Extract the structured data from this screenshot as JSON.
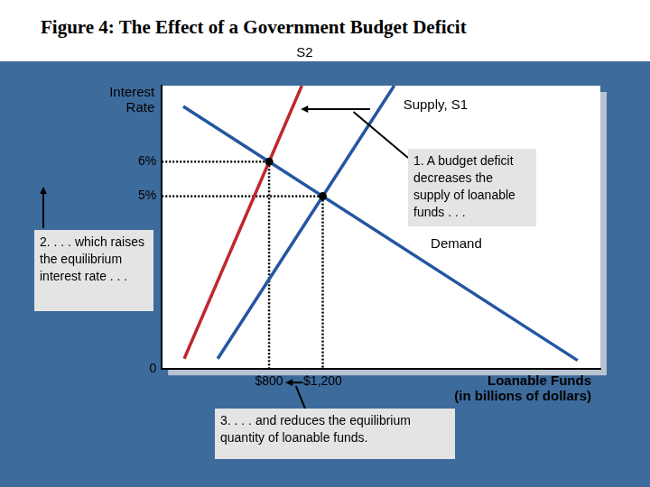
{
  "chart_data": {
    "type": "line",
    "title": "Figure 4: The Effect of a Government Budget Deficit",
    "x_label": "Loanable Funds\n(in billions of dollars)",
    "y_label": "Interest\nRate",
    "xlim": [
      0,
      3270
    ],
    "ylim": [
      0,
      8.2
    ],
    "xticks": [
      {
        "value": 800,
        "label": "$800"
      },
      {
        "value": 1200,
        "label": "$1,200"
      }
    ],
    "yticks": [
      {
        "value": 0,
        "label": "0"
      },
      {
        "value": 5,
        "label": "5%"
      },
      {
        "value": 6,
        "label": "6%"
      }
    ],
    "grid": false,
    "series": [
      {
        "name": "S2",
        "color": "#c0282d",
        "x": [
          167,
          1044
        ],
        "values": [
          0.3,
          8.2
        ]
      },
      {
        "name": "Supply, S1",
        "color": "#2356a0",
        "x": [
          417,
          1733
        ],
        "values": [
          0.3,
          8.2
        ]
      },
      {
        "name": "Demand",
        "color": "#2356a0",
        "x": [
          160,
          3100
        ],
        "values": [
          7.6,
          0.25
        ]
      }
    ],
    "equilibria": [
      {
        "x": 800,
        "y": 6
      },
      {
        "x": 1200,
        "y": 5
      }
    ],
    "annotations": [
      "1. A budget deficit decreases the supply of loanable funds . . .",
      "2. . . . which raises the equilibrium interest rate . . .",
      "3. . . . and reduces the equilibrium quantity of loanable funds."
    ]
  }
}
